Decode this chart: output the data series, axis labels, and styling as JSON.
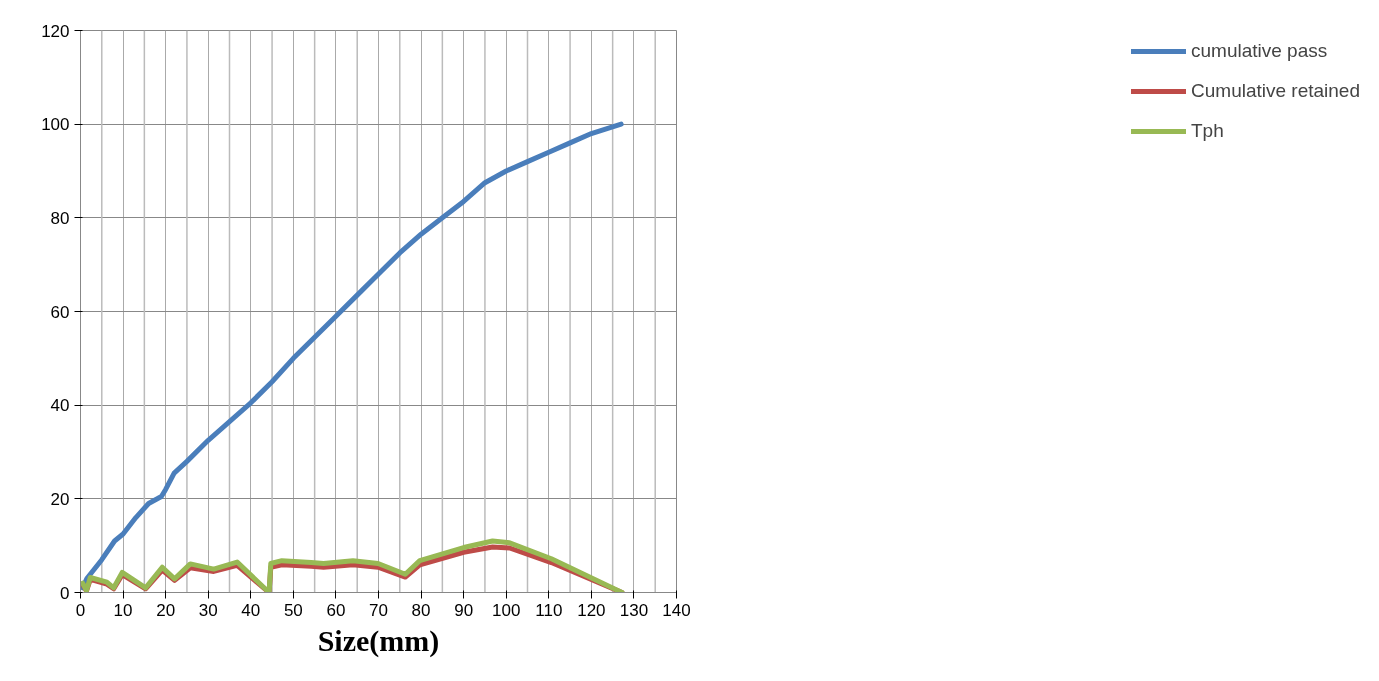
{
  "chart_data": {
    "type": "line",
    "xlabel": "Size(mm)",
    "xlim": [
      0,
      140
    ],
    "ylim": [
      0,
      120
    ],
    "xticks": [
      0,
      10,
      20,
      30,
      40,
      50,
      60,
      70,
      80,
      90,
      100,
      110,
      120,
      130,
      140
    ],
    "yticks": [
      0,
      20,
      40,
      60,
      80,
      100,
      120
    ],
    "grid": true,
    "legend": "right",
    "marker": "none",
    "line_style": "solid",
    "series": [
      {
        "name": "cumulative pass",
        "color": "#4a7ebb",
        "x": [
          0.5,
          1.5,
          5,
          8,
          10,
          13,
          16,
          19,
          20,
          22,
          25,
          30,
          35,
          40,
          45,
          50,
          55,
          60,
          65,
          70,
          75,
          80,
          85,
          90,
          95,
          100,
          105,
          110,
          115,
          120,
          127
        ],
        "values": [
          1,
          3,
          7,
          11,
          12.5,
          16,
          19,
          20.5,
          22,
          25.5,
          28,
          32.5,
          36.5,
          40.5,
          45,
          50,
          54.5,
          59,
          63.5,
          68,
          72.5,
          76.5,
          80,
          83.5,
          87.5,
          90,
          92,
          94,
          96,
          98,
          100
        ]
      },
      {
        "name": "Cumulative retained",
        "color": "#be4b48",
        "x": [
          0.5,
          1.4,
          2.3,
          6.2,
          7.8,
          9.8,
          15.3,
          19.2,
          22.1,
          25.8,
          31.3,
          36.8,
          44.3,
          44.7,
          47.3,
          54.2,
          57.1,
          64,
          69.9,
          76.3,
          79.7,
          90,
          96.8,
          100.8,
          110.6,
          127.2
        ],
        "values": [
          1.8,
          0.3,
          2.8,
          1.8,
          0.8,
          3.8,
          0.8,
          4.8,
          2.6,
          5.3,
          4.5,
          5.8,
          0,
          5.4,
          5.9,
          5.6,
          5.4,
          5.9,
          5.4,
          3.3,
          5.9,
          8.6,
          9.7,
          9.5,
          6.4,
          0
        ]
      },
      {
        "name": "Tph",
        "color": "#98b954",
        "x": [
          0.5,
          1.4,
          2.3,
          6.2,
          7.8,
          9.8,
          15.3,
          19.2,
          22.1,
          25.8,
          31.3,
          36.8,
          44.3,
          44.7,
          47.3,
          54.2,
          57.1,
          64,
          69.9,
          76.3,
          79.7,
          90,
          96.8,
          100.8,
          110.6,
          127.2
        ],
        "values": [
          2,
          0.4,
          3.2,
          2.2,
          1,
          4.3,
          1,
          5.4,
          2.9,
          6.1,
          5,
          6.5,
          0,
          6.2,
          6.8,
          6.4,
          6.2,
          6.8,
          6.2,
          3.9,
          6.8,
          9.6,
          11,
          10.6,
          7.2,
          0
        ]
      }
    ]
  }
}
